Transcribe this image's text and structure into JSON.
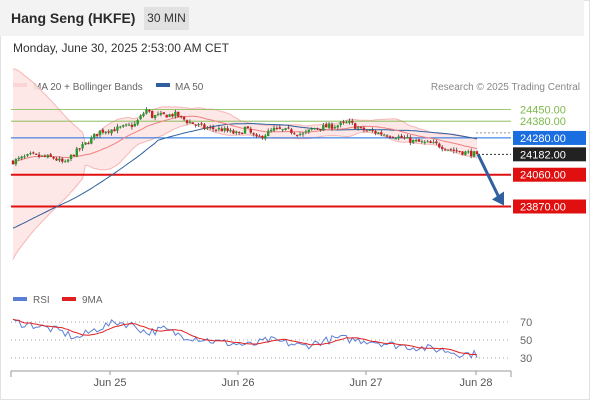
{
  "header": {
    "instrument": "Hang Seng (HKFE)",
    "timeframe": "30 MIN",
    "datetime": "Monday, June 30, 2025 2:53:00 AM CET"
  },
  "chart_data": [
    {
      "type": "candlestick",
      "title": "Hang Seng (HKFE)",
      "legend": [
        {
          "name": "MA 20 + Bollinger Bands",
          "color": "#f08080"
        },
        {
          "name": "MA 50",
          "color": "#2f5f9e"
        }
      ],
      "legend_position": "top-left",
      "attribution": "Research © 2025 Trading Central",
      "x_ticks": [
        "Jun 25",
        "Jun 26",
        "Jun 27",
        "Jun 28"
      ],
      "y_range": [
        23720,
        24550
      ],
      "grid": false,
      "last_price": 24182.0,
      "levels": [
        {
          "value": 24450.0,
          "label": "24450.00",
          "kind": "resistance",
          "color": "#7db84a"
        },
        {
          "value": 24380.0,
          "label": "24380.00",
          "kind": "resistance",
          "color": "#7db84a"
        },
        {
          "value": 24280.0,
          "label": "24280.00",
          "kind": "pivot",
          "color": "#1a6ee0"
        },
        {
          "value": 24182.0,
          "label": "24182.00",
          "kind": "last",
          "color": "#222222"
        },
        {
          "value": 24060.0,
          "label": "24060.00",
          "kind": "support",
          "color": "#e01010"
        },
        {
          "value": 23870.0,
          "label": "23870.00",
          "kind": "support",
          "color": "#e01010"
        }
      ],
      "projection": {
        "from": 24182,
        "to": 23870,
        "direction": "down"
      }
    },
    {
      "type": "line",
      "title": "RSI",
      "legend": [
        {
          "name": "RSI",
          "color": "#5b7fd6"
        },
        {
          "name": "9MA",
          "color": "#e02020"
        }
      ],
      "y_ticks": [
        70,
        50,
        30
      ],
      "y_range": [
        15,
        85
      ],
      "grid": false
    }
  ]
}
